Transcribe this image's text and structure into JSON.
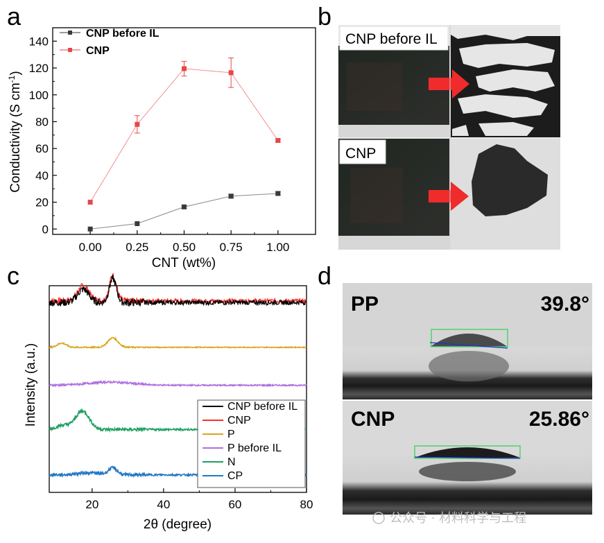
{
  "panels": {
    "a": "a",
    "b": "b",
    "c": "c",
    "d": "d"
  },
  "chart_data": [
    {
      "panel": "a",
      "type": "line",
      "xlabel": "CNT (wt%)",
      "ylabel_main": "Conductivity (S cm",
      "ylabel_sup": "-1",
      "ylabel_close": ")",
      "x": [
        0.0,
        0.25,
        0.5,
        0.75,
        1.0
      ],
      "x_ticks": [
        "0.00",
        "0.25",
        "0.50",
        "0.75",
        "1.00"
      ],
      "y_ticks": [
        "0",
        "20",
        "40",
        "60",
        "80",
        "100",
        "120",
        "140"
      ],
      "xlim": [
        -0.2,
        1.2
      ],
      "ylim": [
        -4,
        150
      ],
      "series": [
        {
          "name": "CNP before IL",
          "color": "#3a3a3a",
          "values": [
            0,
            4,
            16.5,
            24.5,
            26.5
          ],
          "errors": [
            0,
            0.5,
            1.2,
            1.5,
            1.2
          ]
        },
        {
          "name": "CNP",
          "color": "#e8464a",
          "values": [
            20,
            78,
            119.5,
            116.5,
            66
          ],
          "errors": [
            0.5,
            6.5,
            5.5,
            11,
            1
          ]
        }
      ]
    },
    {
      "panel": "c",
      "type": "line",
      "xlabel": "2θ (degree)",
      "ylabel": "Intensity (a.u.)",
      "x_ticks": [
        "20",
        "40",
        "60",
        "80"
      ],
      "xlim": [
        8,
        80
      ],
      "series": [
        {
          "name": "CNP before IL",
          "color": "#000000",
          "offset": 3.55,
          "peaks": [
            [
              17.5,
              0.25,
              1.6
            ],
            [
              25.8,
              0.45,
              1.0
            ]
          ],
          "noise": 0.045
        },
        {
          "name": "CNP",
          "color": "#ff2a2a",
          "offset": 3.58,
          "peaks": [
            [
              17.5,
              0.28,
              1.6
            ],
            [
              25.8,
              0.48,
              1.0
            ]
          ],
          "noise": 0.04
        },
        {
          "name": "P",
          "color": "#d9a520",
          "offset": 2.7,
          "peaks": [
            [
              11.5,
              0.08,
              1.2
            ],
            [
              25.8,
              0.18,
              1.4
            ]
          ],
          "noise": 0.008
        },
        {
          "name": "P before IL",
          "color": "#b06fe0",
          "offset": 1.98,
          "peaks": [
            [
              25,
              0.06,
              6
            ]
          ],
          "noise": 0.012
        },
        {
          "name": "N",
          "color": "#1f9f62",
          "offset": 1.14,
          "peaks": [
            [
              17.3,
              0.35,
              1.9
            ],
            [
              12,
              0.08,
              2
            ]
          ],
          "noise": 0.018
        },
        {
          "name": "CP",
          "color": "#2277c5",
          "offset": 0.28,
          "peaks": [
            [
              25.8,
              0.13,
              1.2
            ],
            [
              19,
              0.04,
              3
            ]
          ],
          "noise": 0.018
        }
      ]
    }
  ],
  "photos_b": {
    "top_label": "CNP before IL",
    "bottom_label": "CNP"
  },
  "photos_d": {
    "top_label": "PP",
    "top_angle": "39.8°",
    "bottom_label": "CNP",
    "bottom_angle": "25.86°"
  },
  "watermark": "公众号 · 材料科学与工程"
}
